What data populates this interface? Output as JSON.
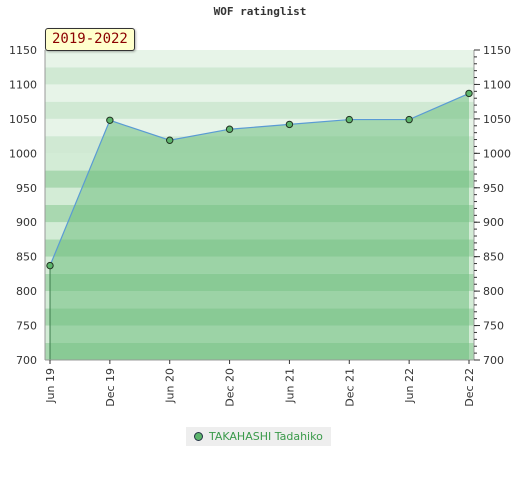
{
  "chart_data": {
    "type": "area",
    "title": "WOF ratinglist",
    "period_label": "2019-2022",
    "x": [
      "Jun 19",
      "Dec 19",
      "Jun 20",
      "Dec 20",
      "Jun 21",
      "Dec 21",
      "Jun 22",
      "Dec 22"
    ],
    "series": [
      {
        "name": "TAKAHASHI Tadahiko",
        "values": [
          837,
          1048,
          1019,
          1035,
          1042,
          1049,
          1049,
          1087
        ]
      }
    ],
    "ylim": [
      700,
      1150
    ],
    "yticks": [
      700,
      750,
      800,
      850,
      900,
      950,
      1000,
      1050,
      1100,
      1150
    ],
    "y_axis_both_sides": true,
    "legend_position": "bottom-center",
    "colors": {
      "line": "#5a9bd4",
      "area": "#6fbf7f",
      "marker": "#5db56c",
      "band_dark": "#a9d8b0",
      "band_light": "#d3ecd6"
    }
  }
}
